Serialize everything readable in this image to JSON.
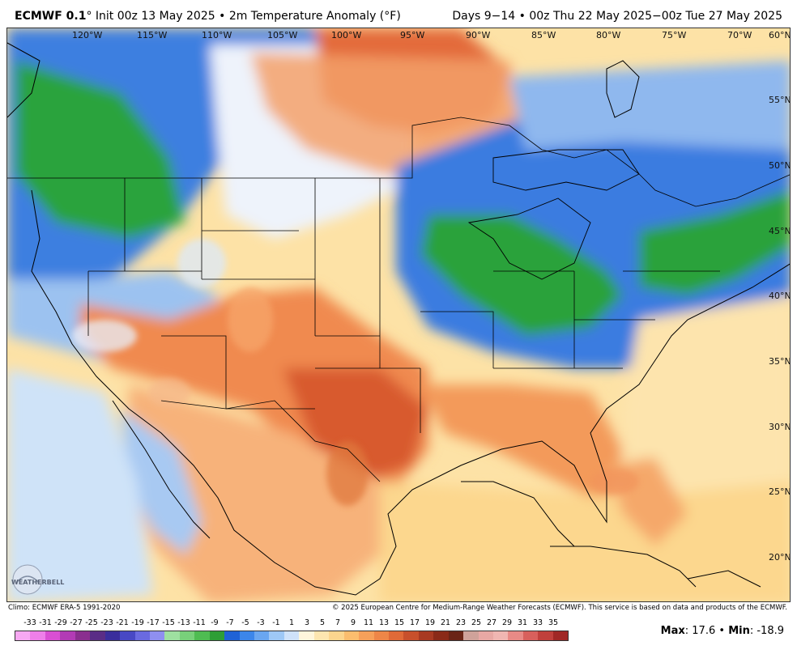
{
  "header": {
    "model": "ECMWF 0.1",
    "degree": "°",
    "init": "Init 00z 13 May 2025",
    "bullet": "•",
    "field": "2m Temperature Anomaly (°F)",
    "valid": "Days 9−14 • 00z Thu 22 May 2025−00z Tue 27 May 2025"
  },
  "map": {
    "longitude_labels": [
      "120°W",
      "115°W",
      "110°W",
      "105°W",
      "100°W",
      "95°W",
      "90°W",
      "85°W",
      "80°W",
      "75°W",
      "70°W"
    ],
    "latitude_labels": [
      "60°N",
      "55°N",
      "50°N",
      "45°N",
      "40°N",
      "35°N",
      "30°N",
      "25°N",
      "20°N"
    ],
    "colors": {
      "strong_warm": "#d2512a",
      "warm": "#f08a4f",
      "mild_warm": "#fcd58e",
      "slight_warm": "#fff0c6",
      "neutral": "#f5f7fb",
      "slight_cool": "#bfd8f3",
      "cool": "#6aa2e6",
      "strong_cool": "#2f6fd6",
      "very_cool": "#2fa33a",
      "land_outline": "#000000"
    }
  },
  "logo": {
    "text": "WEATHERBELL"
  },
  "footer": {
    "climo": "Climo: ECMWF ERA-5 1991-2020",
    "copyright": "© 2025 European Centre for Medium-Range Weather Forecasts (ECMWF). This service is based on data and products of the ECMWF."
  },
  "legend": {
    "ticks": [
      "-33",
      "-31",
      "-29",
      "-27",
      "-25",
      "-23",
      "-21",
      "-19",
      "-17",
      "-15",
      "-13",
      "-11",
      "-9",
      "-7",
      "-5",
      "-3",
      "-1",
      "1",
      "3",
      "5",
      "7",
      "9",
      "11",
      "13",
      "15",
      "17",
      "19",
      "21",
      "23",
      "25",
      "27",
      "29",
      "31",
      "33",
      "35"
    ],
    "colors": [
      "#f7a8f2",
      "#ee7fe9",
      "#d94fd3",
      "#b23bb5",
      "#8a2f8f",
      "#5a2d86",
      "#3a2e9c",
      "#4848c4",
      "#6a6ae0",
      "#8f8ff0",
      "#9ee0a0",
      "#78d07a",
      "#4fbc52",
      "#2e9e36",
      "#1f62d6",
      "#3c86ea",
      "#6aa6f0",
      "#9ec8f6",
      "#cfe2fa",
      "#fff6dc",
      "#fde6b0",
      "#fcd58e",
      "#fbbd6e",
      "#f6a05a",
      "#ee8648",
      "#e06a38",
      "#c8502c",
      "#a83a22",
      "#8a2a18",
      "#6a2416",
      "#cfa29a",
      "#e8a8a4",
      "#f0b6b2",
      "#e88a86",
      "#d8605c",
      "#c0403c",
      "#a02826"
    ]
  },
  "stats": {
    "max_label": "Max",
    "max_value": "17.6",
    "separator": "•",
    "min_label": "Min",
    "min_value": "-18.9"
  }
}
